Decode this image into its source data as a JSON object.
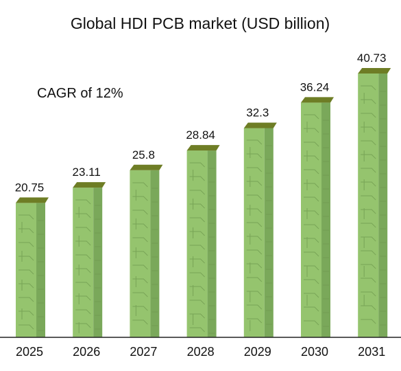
{
  "chart_data": {
    "type": "bar",
    "title": "Global HDI PCB market (USD billion)",
    "annotation": "CAGR of 12%",
    "categories": [
      "2025",
      "2026",
      "2027",
      "2028",
      "2029",
      "2030",
      "2031"
    ],
    "values": [
      20.75,
      23.11,
      25.8,
      28.84,
      32.3,
      36.24,
      40.73
    ],
    "value_labels": [
      "20.75",
      "23.11",
      "25.8",
      "28.84",
      "32.3",
      "36.24",
      "40.73"
    ],
    "xlabel": "",
    "ylabel": "",
    "ylim": [
      0,
      42
    ],
    "grid": false,
    "legend": "none",
    "colors": {
      "bar_front": "#95c46e",
      "bar_side": "#7aa85a",
      "bar_top": "#6e7d25",
      "trace": "#6f9a4f",
      "axis": "#222222"
    }
  }
}
